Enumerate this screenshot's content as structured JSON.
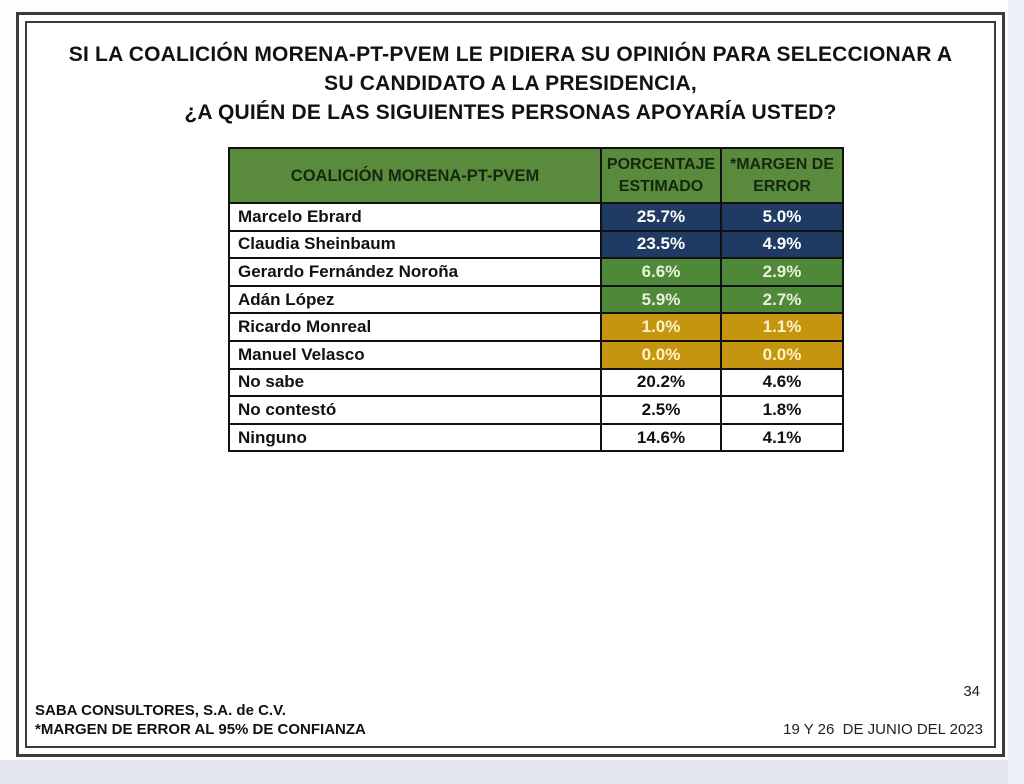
{
  "slide": {
    "title_lines": [
      "SI LA COALICIÓN MORENA-PT-PVEM LE PIDIERA SU OPINIÓN PARA SELECCIONAR A",
      "SU CANDIDATO A LA PRESIDENCIA,",
      "¿A QUIÉN DE LAS SIGUIENTES PERSONAS APOYARÍA USTED?"
    ],
    "footer_left_line1": "SABA CONSULTORES, S.A. de C.V.",
    "footer_left_line2": "*MARGEN DE ERROR AL 95% DE CONFIANZA",
    "page_number": "34",
    "footer_right_date": "19 Y 26  DE JUNIO DEL 2023"
  },
  "table": {
    "headers": [
      "COALICIÓN MORENA-PT-PVEM",
      "PORCENTAJE ESTIMADO",
      "*MARGEN DE ERROR"
    ],
    "rows": [
      {
        "name": "Marcelo Ebrard",
        "pct": "25.7%",
        "moe": "5.0%",
        "tier": "blue"
      },
      {
        "name": "Claudia Sheinbaum",
        "pct": "23.5%",
        "moe": "4.9%",
        "tier": "blue"
      },
      {
        "name": "Gerardo Fernández Noroña",
        "pct": "6.6%",
        "moe": "2.9%",
        "tier": "green"
      },
      {
        "name": "Adán López",
        "pct": "5.9%",
        "moe": "2.7%",
        "tier": "green"
      },
      {
        "name": "Ricardo Monreal",
        "pct": "1.0%",
        "moe": "1.1%",
        "tier": "gold"
      },
      {
        "name": "Manuel Velasco",
        "pct": "0.0%",
        "moe": "0.0%",
        "tier": "gold"
      },
      {
        "name": "No sabe",
        "pct": "20.2%",
        "moe": "4.6%",
        "tier": "plain"
      },
      {
        "name": "No contestó",
        "pct": "2.5%",
        "moe": "1.8%",
        "tier": "plain"
      },
      {
        "name": "Ninguno",
        "pct": "14.6%",
        "moe": "4.1%",
        "tier": "plain"
      }
    ]
  },
  "colors": {
    "header_green": "#5a8a3c",
    "header_text": "#14280f",
    "tier_blue": "#203b63",
    "tier_green": "#4f8839",
    "tier_gold": "#c6950f",
    "text_on_blue": "#ffffff",
    "text_on_green": "#e9f3da",
    "text_on_gold": "#fdf4c6"
  },
  "chart_data": {
    "type": "table",
    "title": "SI LA COALICIÓN MORENA-PT-PVEM LE PIDIERA SU OPINIÓN PARA SELECCIONAR A SU CANDIDATO A LA PRESIDENCIA, ¿A QUIÉN DE LAS SIGUIENTES PERSONAS APOYARÍA USTED?",
    "columns": [
      "COALICIÓN MORENA-PT-PVEM",
      "PORCENTAJE ESTIMADO (%)",
      "*MARGEN DE ERROR (%)"
    ],
    "rows": [
      [
        "Marcelo Ebrard",
        25.7,
        5.0
      ],
      [
        "Claudia Sheinbaum",
        23.5,
        4.9
      ],
      [
        "Gerardo Fernández Noroña",
        6.6,
        2.9
      ],
      [
        "Adán López",
        5.9,
        2.7
      ],
      [
        "Ricardo Monreal",
        1.0,
        1.1
      ],
      [
        "Manuel Velasco",
        0.0,
        0.0
      ],
      [
        "No sabe",
        20.2,
        4.6
      ],
      [
        "No contestó",
        2.5,
        1.8
      ],
      [
        "Ninguno",
        14.6,
        4.1
      ]
    ],
    "units": "percent",
    "notes": [
      "*MARGEN DE ERROR AL 95% DE CONFIANZA",
      "Fieldwork: 19 Y 26 DE JUNIO DEL 2023",
      "Source: SABA CONSULTORES, S.A. de C.V."
    ]
  }
}
